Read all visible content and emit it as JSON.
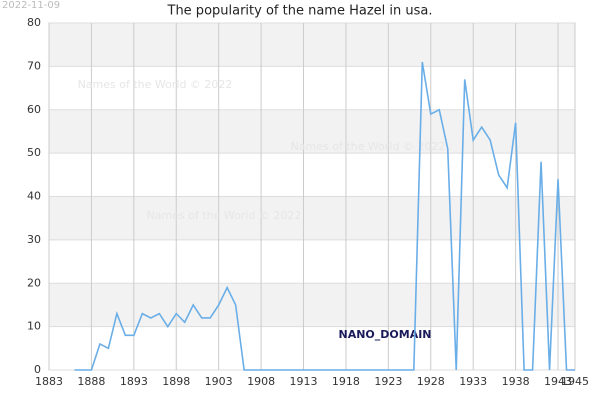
{
  "chart_data": {
    "type": "line",
    "title": "The popularity of the name Hazel in usa.",
    "date": "2022-11-09",
    "watermarks": [
      "Names of the World © 2022",
      "Names of the World © 2022",
      "Names of the World © 2022"
    ],
    "annotation": "NANO_DOMAIN",
    "x": [
      1886,
      1887,
      1888,
      1889,
      1890,
      1891,
      1892,
      1893,
      1894,
      1895,
      1896,
      1897,
      1898,
      1899,
      1900,
      1901,
      1902,
      1903,
      1904,
      1905,
      1906,
      1907,
      1908,
      1909,
      1910,
      1911,
      1912,
      1913,
      1914,
      1915,
      1916,
      1917,
      1918,
      1919,
      1920,
      1921,
      1922,
      1923,
      1924,
      1925,
      1926,
      1927,
      1928,
      1929,
      1930,
      1931,
      1932,
      1933,
      1934,
      1935,
      1936,
      1937,
      1938,
      1939,
      1940,
      1941,
      1942,
      1943,
      1944,
      1945
    ],
    "series": [
      {
        "name": "Hazel",
        "color": "#6aaee8",
        "values": [
          0,
          0,
          0,
          6,
          5,
          13,
          8,
          8,
          13,
          12,
          13,
          10,
          13,
          11,
          15,
          12,
          12,
          15,
          19,
          15,
          0,
          0,
          0,
          0,
          0,
          0,
          0,
          0,
          0,
          0,
          0,
          0,
          0,
          0,
          0,
          0,
          0,
          0,
          0,
          0,
          0,
          71,
          59,
          60,
          51,
          0,
          67,
          53,
          56,
          53,
          45,
          42,
          57,
          0,
          0,
          48,
          0,
          44,
          0,
          0
        ]
      }
    ],
    "xlim": [
      1883,
      1945
    ],
    "xticks": [
      1883,
      1888,
      1893,
      1898,
      1903,
      1908,
      1913,
      1918,
      1923,
      1928,
      1933,
      1938,
      1943,
      1945
    ],
    "ylim": [
      0,
      80
    ],
    "yticks": [
      0,
      10,
      20,
      30,
      40,
      50,
      60,
      70,
      80
    ],
    "grid": true
  }
}
